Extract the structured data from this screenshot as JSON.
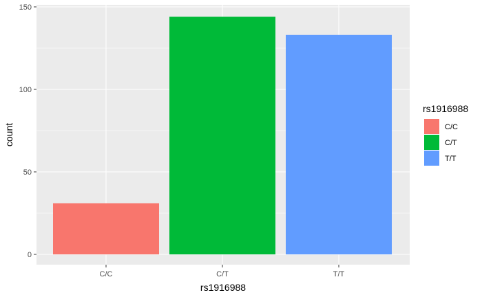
{
  "chart_data": {
    "type": "bar",
    "title": "",
    "xlabel": "rs1916988",
    "ylabel": "count",
    "categories": [
      "C/C",
      "C/T",
      "T/T"
    ],
    "values": [
      31,
      144,
      133
    ],
    "colors": [
      "#F8766D",
      "#00BA38",
      "#619CFF"
    ],
    "ylim": [
      0,
      150
    ],
    "yticks": [
      0,
      50,
      100,
      150
    ],
    "grid": true,
    "panel_background": "#EBEBEB",
    "grid_color": "#FFFFFF",
    "legend": {
      "title": "rs1916988",
      "placement": "right",
      "entries": [
        "C/C",
        "C/T",
        "T/T"
      ]
    }
  }
}
